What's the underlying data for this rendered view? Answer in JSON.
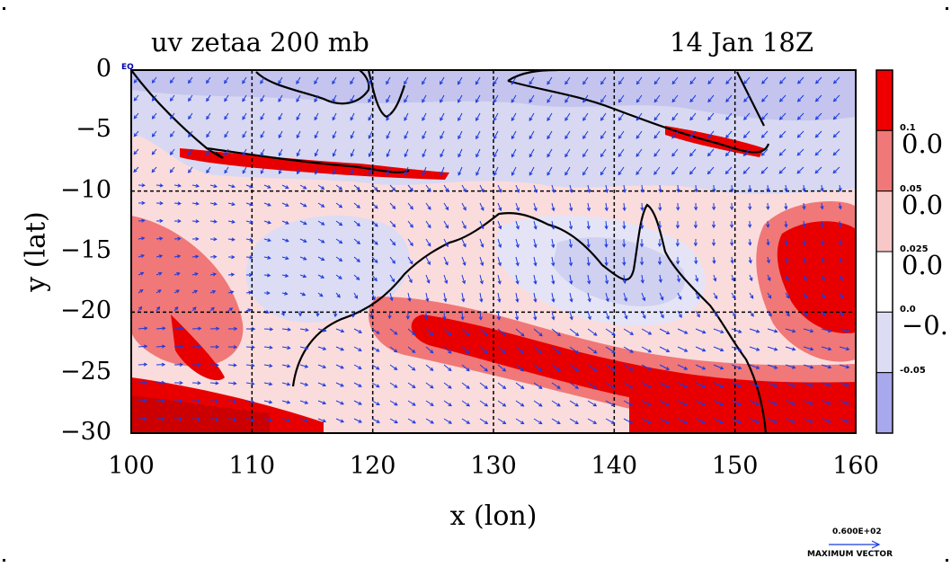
{
  "title": {
    "left": "uv zetaa 200 mb",
    "right": "14 Jan 18Z"
  },
  "axes": {
    "xlabel": "x (lon)",
    "ylabel": "y (lat)",
    "xticks": [
      "100",
      "110",
      "120",
      "130",
      "140",
      "150",
      "160"
    ],
    "yticks": [
      "0",
      "−5",
      "−10",
      "−15",
      "−20",
      "−25",
      "−30"
    ],
    "xrange": [
      100,
      160
    ],
    "yrange": [
      -30,
      0
    ],
    "eq_label": "EQ"
  },
  "colorbar": {
    "big_labels": [
      "0.0",
      "0.0",
      "0.0",
      "−0."
    ],
    "small_labels": [
      "0.1",
      "0.05",
      "0.025",
      "0.0",
      "-0.05"
    ],
    "colors": [
      "#ee0000",
      "#f07878",
      "#f8c8c8",
      "#ffffff",
      "#dcdcf4",
      "#a8a8ec"
    ]
  },
  "vector_key": {
    "value": "0.600E+02",
    "caption": "MAXIMUM VECTOR"
  },
  "colors": {
    "vector": "#1a3ae0",
    "contour": "#dd0000",
    "coast": "#000000"
  }
}
